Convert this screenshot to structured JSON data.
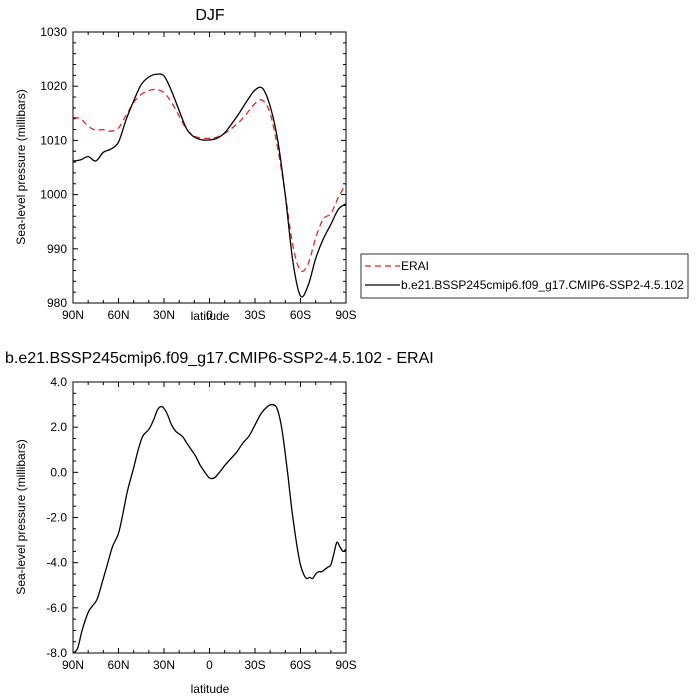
{
  "chart_data": [
    {
      "type": "line",
      "title": "DJF",
      "xlabel": "latitude",
      "ylabel": "Sea-level pressure (millibars)",
      "xlim": [
        90,
        -90
      ],
      "ylim": [
        980,
        1030
      ],
      "xticks": [
        90,
        60,
        30,
        0,
        -30,
        -60,
        -90
      ],
      "xtick_labels": [
        "90N",
        "60N",
        "30N",
        "0",
        "30S",
        "60S",
        "90S"
      ],
      "yticks": [
        980,
        990,
        1000,
        1010,
        1020,
        1030
      ],
      "ytick_labels": [
        "980",
        "990",
        "1000",
        "1010",
        "1020",
        "1030"
      ],
      "legend_position": "right",
      "series": [
        {
          "name": "ERAI",
          "color": "#e8231e",
          "style": "dashed",
          "x": [
            90,
            85,
            80,
            75,
            70,
            65,
            60,
            55,
            50,
            45,
            40,
            35,
            30,
            25,
            20,
            15,
            10,
            5,
            0,
            -5,
            -10,
            -15,
            -20,
            -25,
            -30,
            -35,
            -40,
            -45,
            -50,
            -55,
            -60,
            -65,
            -70,
            -75,
            -80,
            -85,
            -90
          ],
          "y": [
            1014.2,
            1014.0,
            1012.6,
            1011.9,
            1012.0,
            1011.7,
            1012.3,
            1014.6,
            1017.0,
            1018.5,
            1019.2,
            1019.4,
            1018.8,
            1017.0,
            1014.5,
            1012.0,
            1010.8,
            1010.4,
            1010.4,
            1010.6,
            1011.3,
            1012.3,
            1013.5,
            1015.1,
            1016.8,
            1017.4,
            1015.0,
            1008.5,
            1000.0,
            990.5,
            986.0,
            987.2,
            992.0,
            995.5,
            996.5,
            999.5,
            1002.0
          ]
        },
        {
          "name": "b.e21.BSSP245cmip6.f09_g17.CMIP6-SSP2-4.5.102",
          "color": "#000000",
          "style": "solid",
          "x": [
            90,
            85,
            80,
            75,
            70,
            65,
            60,
            55,
            50,
            45,
            40,
            35,
            30,
            25,
            20,
            15,
            10,
            5,
            0,
            -5,
            -10,
            -15,
            -20,
            -25,
            -30,
            -35,
            -40,
            -45,
            -50,
            -55,
            -60,
            -65,
            -70,
            -75,
            -80,
            -85,
            -90
          ],
          "y": [
            1006.2,
            1006.4,
            1007.0,
            1006.2,
            1007.8,
            1008.4,
            1009.7,
            1013.8,
            1017.3,
            1020.3,
            1021.7,
            1022.2,
            1021.9,
            1019.1,
            1015.5,
            1012.1,
            1010.6,
            1010.1,
            1010.1,
            1010.4,
            1011.4,
            1013.2,
            1015.2,
            1017.4,
            1019.3,
            1019.6,
            1016.3,
            1010.0,
            999.8,
            987.6,
            981.3,
            983.2,
            988.2,
            991.8,
            994.5,
            997.3,
            998.3
          ]
        }
      ]
    },
    {
      "type": "line",
      "title": "b.e21.BSSP245cmip6.f09_g17.CMIP6-SSP2-4.5.102 - ERAI",
      "xlabel": "latitude",
      "ylabel": "Sea-level pressure (millibars)",
      "xlim": [
        90,
        -90
      ],
      "ylim": [
        -8,
        4
      ],
      "xticks": [
        90,
        60,
        30,
        0,
        -30,
        -60,
        -90
      ],
      "xtick_labels": [
        "90N",
        "60N",
        "30N",
        "0",
        "30S",
        "60S",
        "90S"
      ],
      "yticks": [
        -8,
        -6,
        -4,
        -2,
        0,
        2,
        4
      ],
      "ytick_labels": [
        "-8.0",
        "-6.0",
        "-4.0",
        "-2.0",
        "0.0",
        "2.0",
        "4.0"
      ],
      "series": [
        {
          "color": "#000000",
          "style": "solid",
          "x": [
            90,
            87,
            84,
            80,
            77,
            74,
            70,
            67,
            64,
            60,
            57,
            54,
            50,
            47,
            44,
            40,
            37,
            34,
            31,
            28,
            25,
            22,
            18,
            15,
            12,
            9,
            6,
            3,
            0,
            -3,
            -6,
            -10,
            -14,
            -18,
            -22,
            -26,
            -30,
            -34,
            -38,
            -41,
            -44,
            -46,
            -48,
            -50,
            -52,
            -54,
            -56,
            -58,
            -60,
            -62,
            -64,
            -66,
            -68,
            -70,
            -72,
            -74,
            -76,
            -78,
            -80,
            -82,
            -84,
            -86,
            -88,
            -90
          ],
          "y": [
            -8.0,
            -7.8,
            -7.0,
            -6.2,
            -5.9,
            -5.6,
            -4.7,
            -4.0,
            -3.3,
            -2.7,
            -1.8,
            -0.8,
            0.2,
            1.0,
            1.6,
            1.9,
            2.3,
            2.8,
            2.9,
            2.6,
            2.1,
            1.8,
            1.6,
            1.3,
            1.0,
            0.7,
            0.3,
            0.0,
            -0.25,
            -0.25,
            -0.05,
            0.3,
            0.6,
            0.9,
            1.3,
            1.6,
            2.1,
            2.6,
            2.9,
            3.0,
            2.9,
            2.5,
            1.8,
            0.8,
            -0.3,
            -1.5,
            -2.5,
            -3.4,
            -4.1,
            -4.5,
            -4.7,
            -4.65,
            -4.7,
            -4.5,
            -4.4,
            -4.4,
            -4.3,
            -4.2,
            -4.1,
            -3.6,
            -3.1,
            -3.3,
            -3.5,
            -3.4
          ]
        }
      ]
    }
  ]
}
